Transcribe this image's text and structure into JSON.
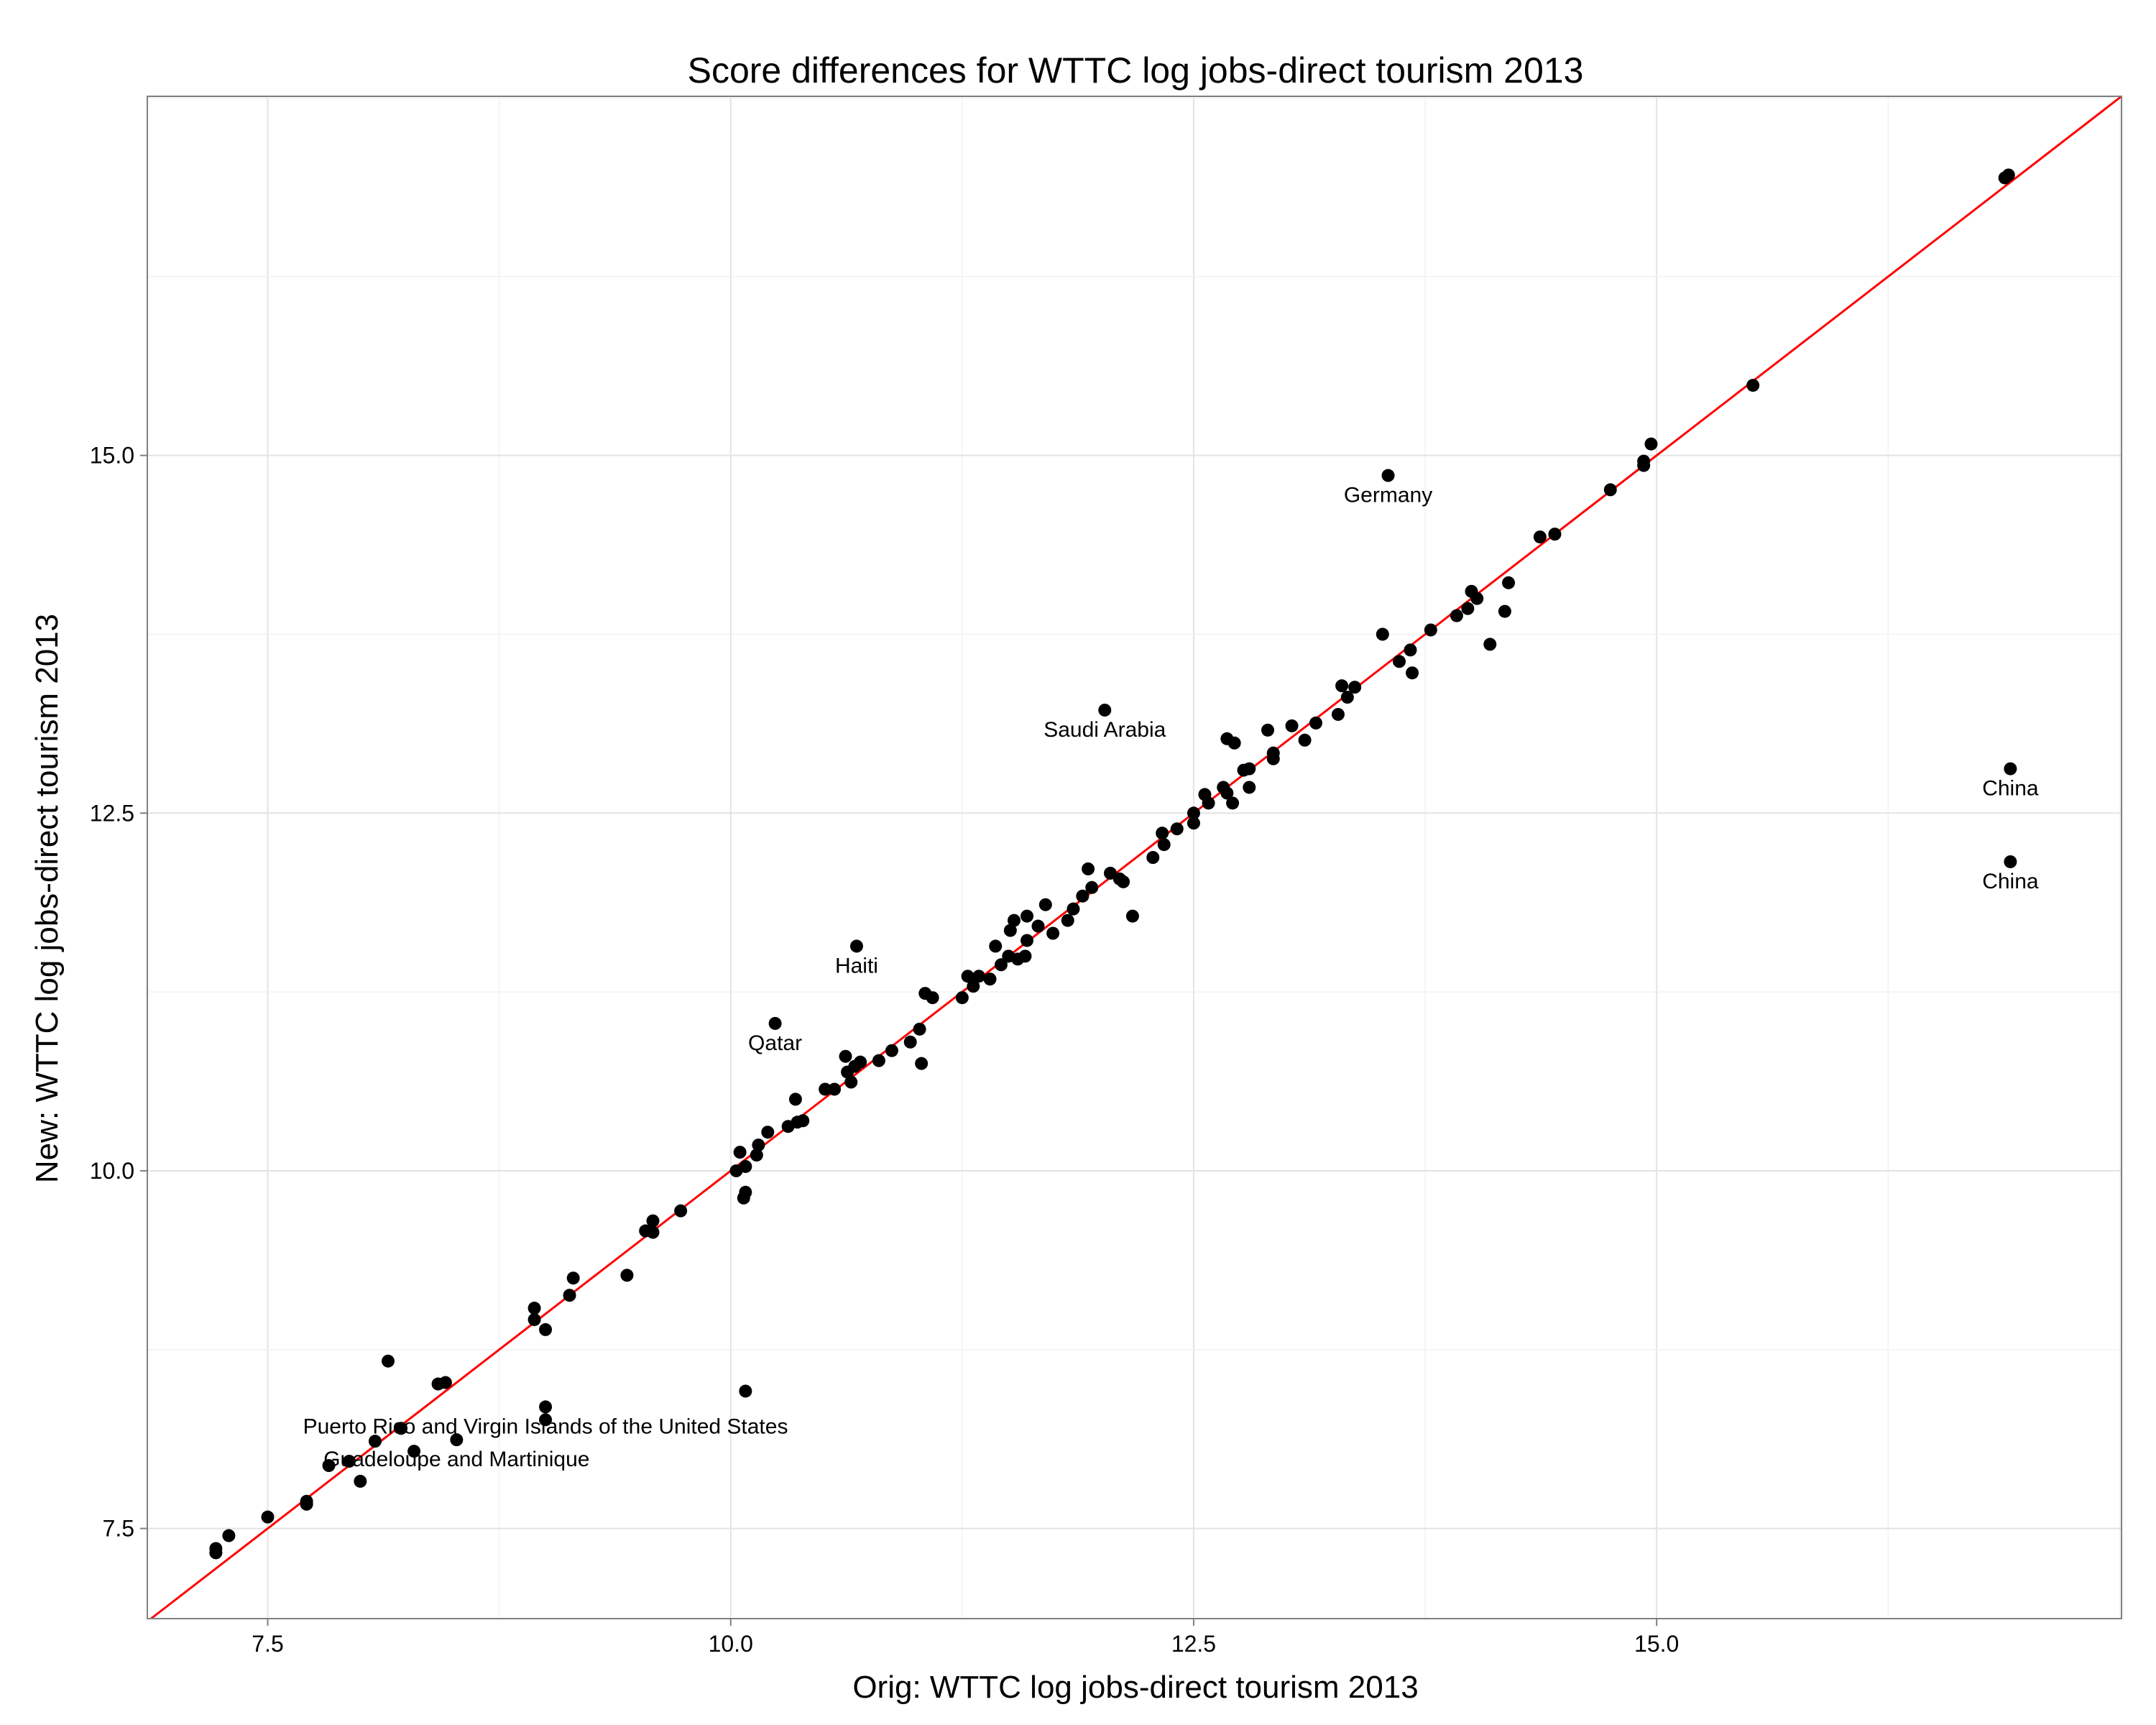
{
  "chart_data": {
    "type": "scatter",
    "title": "Score differences for WTTC log jobs-direct tourism 2013",
    "xlabel": "Orig: WTTC log jobs-direct tourism 2013",
    "ylabel": "New: WTTC log jobs-direct tourism 2013",
    "xlim": [
      6.85,
      17.51
    ],
    "ylim": [
      6.87,
      17.51
    ],
    "x_ticks": [
      7.5,
      10.0,
      12.5,
      15.0
    ],
    "y_ticks": [
      7.5,
      10.0,
      12.5,
      15.0
    ],
    "x_tick_labels": [
      "7.5",
      "10.0",
      "12.5",
      "15.0"
    ],
    "y_tick_labels": [
      "7.5",
      "10.0",
      "12.5",
      "15.0"
    ],
    "grid": true,
    "reference_line": {
      "type": "identity",
      "slope": 1,
      "intercept": 0,
      "color": "#ff0000"
    },
    "point_color": "#000000",
    "points": [
      {
        "x": 7.22,
        "y": 7.33
      },
      {
        "x": 7.22,
        "y": 7.36
      },
      {
        "x": 7.29,
        "y": 7.45
      },
      {
        "x": 7.5,
        "y": 7.58
      },
      {
        "x": 7.71,
        "y": 7.67
      },
      {
        "x": 7.71,
        "y": 7.69
      },
      {
        "x": 7.83,
        "y": 7.94
      },
      {
        "x": 7.94,
        "y": 7.97
      },
      {
        "x": 8.0,
        "y": 7.83
      },
      {
        "x": 8.08,
        "y": 8.11
      },
      {
        "x": 8.15,
        "y": 8.67
      },
      {
        "x": 8.22,
        "y": 8.2
      },
      {
        "x": 8.29,
        "y": 8.04
      },
      {
        "x": 8.42,
        "y": 8.51
      },
      {
        "x": 8.46,
        "y": 8.52
      },
      {
        "x": 8.52,
        "y": 8.12
      },
      {
        "x": 8.94,
        "y": 9.04
      },
      {
        "x": 8.94,
        "y": 8.96
      },
      {
        "x": 9.0,
        "y": 8.89
      },
      {
        "x": 9.0,
        "y": 8.35
      },
      {
        "x": 9.0,
        "y": 8.26
      },
      {
        "x": 9.13,
        "y": 9.13
      },
      {
        "x": 9.15,
        "y": 9.25
      },
      {
        "x": 9.44,
        "y": 9.27
      },
      {
        "x": 9.54,
        "y": 9.58
      },
      {
        "x": 9.58,
        "y": 9.65
      },
      {
        "x": 9.58,
        "y": 9.57
      },
      {
        "x": 9.73,
        "y": 9.72
      },
      {
        "x": 10.03,
        "y": 10.0
      },
      {
        "x": 10.05,
        "y": 10.13
      },
      {
        "x": 10.08,
        "y": 10.03
      },
      {
        "x": 10.08,
        "y": 9.85
      },
      {
        "x": 10.07,
        "y": 9.81
      },
      {
        "x": 10.08,
        "y": 8.46
      },
      {
        "x": 10.14,
        "y": 10.11
      },
      {
        "x": 10.15,
        "y": 10.18
      },
      {
        "x": 10.2,
        "y": 10.27
      },
      {
        "x": 10.24,
        "y": 11.03
      },
      {
        "x": 10.31,
        "y": 10.31
      },
      {
        "x": 10.35,
        "y": 10.5
      },
      {
        "x": 10.36,
        "y": 10.34
      },
      {
        "x": 10.39,
        "y": 10.35
      },
      {
        "x": 10.51,
        "y": 10.57
      },
      {
        "x": 10.56,
        "y": 10.57
      },
      {
        "x": 10.62,
        "y": 10.8
      },
      {
        "x": 10.63,
        "y": 10.69
      },
      {
        "x": 10.65,
        "y": 10.62
      },
      {
        "x": 10.67,
        "y": 10.73
      },
      {
        "x": 10.7,
        "y": 10.76
      },
      {
        "x": 10.68,
        "y": 11.57
      },
      {
        "x": 10.8,
        "y": 10.77
      },
      {
        "x": 10.87,
        "y": 10.84
      },
      {
        "x": 10.97,
        "y": 10.9
      },
      {
        "x": 11.02,
        "y": 10.99
      },
      {
        "x": 11.03,
        "y": 10.75
      },
      {
        "x": 11.05,
        "y": 11.24
      },
      {
        "x": 11.09,
        "y": 11.21
      },
      {
        "x": 11.25,
        "y": 11.21
      },
      {
        "x": 11.28,
        "y": 11.36
      },
      {
        "x": 11.31,
        "y": 11.29
      },
      {
        "x": 11.34,
        "y": 11.36
      },
      {
        "x": 11.4,
        "y": 11.34
      },
      {
        "x": 11.43,
        "y": 11.57
      },
      {
        "x": 11.46,
        "y": 11.44
      },
      {
        "x": 11.5,
        "y": 11.5
      },
      {
        "x": 11.51,
        "y": 11.68
      },
      {
        "x": 11.53,
        "y": 11.75
      },
      {
        "x": 11.55,
        "y": 11.48
      },
      {
        "x": 11.59,
        "y": 11.5
      },
      {
        "x": 11.6,
        "y": 11.61
      },
      {
        "x": 11.6,
        "y": 11.78
      },
      {
        "x": 11.66,
        "y": 11.71
      },
      {
        "x": 11.7,
        "y": 11.86
      },
      {
        "x": 11.74,
        "y": 11.66
      },
      {
        "x": 11.82,
        "y": 11.75
      },
      {
        "x": 11.85,
        "y": 11.83
      },
      {
        "x": 11.9,
        "y": 11.92
      },
      {
        "x": 11.93,
        "y": 12.11
      },
      {
        "x": 11.95,
        "y": 11.98
      },
      {
        "x": 12.02,
        "y": 13.22
      },
      {
        "x": 12.05,
        "y": 12.08
      },
      {
        "x": 12.1,
        "y": 12.04
      },
      {
        "x": 12.12,
        "y": 12.02
      },
      {
        "x": 12.17,
        "y": 11.78
      },
      {
        "x": 12.28,
        "y": 12.19
      },
      {
        "x": 12.33,
        "y": 12.36
      },
      {
        "x": 12.34,
        "y": 12.28
      },
      {
        "x": 12.41,
        "y": 12.39
      },
      {
        "x": 12.5,
        "y": 12.43
      },
      {
        "x": 12.5,
        "y": 12.5
      },
      {
        "x": 12.56,
        "y": 12.63
      },
      {
        "x": 12.58,
        "y": 12.57
      },
      {
        "x": 12.66,
        "y": 12.68
      },
      {
        "x": 12.68,
        "y": 12.64
      },
      {
        "x": 12.68,
        "y": 13.02
      },
      {
        "x": 12.72,
        "y": 12.99
      },
      {
        "x": 12.71,
        "y": 12.57
      },
      {
        "x": 12.77,
        "y": 12.8
      },
      {
        "x": 12.8,
        "y": 12.81
      },
      {
        "x": 12.8,
        "y": 12.68
      },
      {
        "x": 12.9,
        "y": 13.08
      },
      {
        "x": 12.93,
        "y": 12.88
      },
      {
        "x": 12.93,
        "y": 12.92
      },
      {
        "x": 13.03,
        "y": 13.11
      },
      {
        "x": 13.1,
        "y": 13.01
      },
      {
        "x": 13.16,
        "y": 13.13
      },
      {
        "x": 13.28,
        "y": 13.19
      },
      {
        "x": 13.3,
        "y": 13.39
      },
      {
        "x": 13.33,
        "y": 13.31
      },
      {
        "x": 13.37,
        "y": 13.38
      },
      {
        "x": 13.52,
        "y": 13.75
      },
      {
        "x": 13.55,
        "y": 14.86
      },
      {
        "x": 13.61,
        "y": 13.56
      },
      {
        "x": 13.67,
        "y": 13.64
      },
      {
        "x": 13.68,
        "y": 13.48
      },
      {
        "x": 13.78,
        "y": 13.78
      },
      {
        "x": 13.92,
        "y": 13.88
      },
      {
        "x": 13.98,
        "y": 13.93
      },
      {
        "x": 14.0,
        "y": 14.05
      },
      {
        "x": 14.03,
        "y": 14.0
      },
      {
        "x": 14.1,
        "y": 13.68
      },
      {
        "x": 14.18,
        "y": 13.91
      },
      {
        "x": 14.2,
        "y": 14.11
      },
      {
        "x": 14.37,
        "y": 14.43
      },
      {
        "x": 14.45,
        "y": 14.45
      },
      {
        "x": 14.75,
        "y": 14.76
      },
      {
        "x": 14.93,
        "y": 14.96
      },
      {
        "x": 14.93,
        "y": 14.93
      },
      {
        "x": 14.97,
        "y": 15.08
      },
      {
        "x": 15.52,
        "y": 15.49
      },
      {
        "x": 16.88,
        "y": 16.94
      },
      {
        "x": 16.9,
        "y": 16.96
      },
      {
        "x": 16.91,
        "y": 12.81
      },
      {
        "x": 16.91,
        "y": 12.16
      }
    ],
    "annotations": [
      {
        "text": "Germany",
        "x": 13.55,
        "y": 14.86
      },
      {
        "text": "Saudi Arabia",
        "x": 12.02,
        "y": 13.22
      },
      {
        "text": "China",
        "x": 16.91,
        "y": 12.81
      },
      {
        "text": "China",
        "x": 16.91,
        "y": 12.16
      },
      {
        "text": "Haiti",
        "x": 10.68,
        "y": 11.57
      },
      {
        "text": "Qatar",
        "x": 10.24,
        "y": 11.03
      },
      {
        "text": "Puerto Rico and Virgin Islands of the United States",
        "x": 9.0,
        "y": 8.35
      },
      {
        "text": "Guadeloupe and Martinique",
        "x": 8.52,
        "y": 8.12
      }
    ]
  }
}
